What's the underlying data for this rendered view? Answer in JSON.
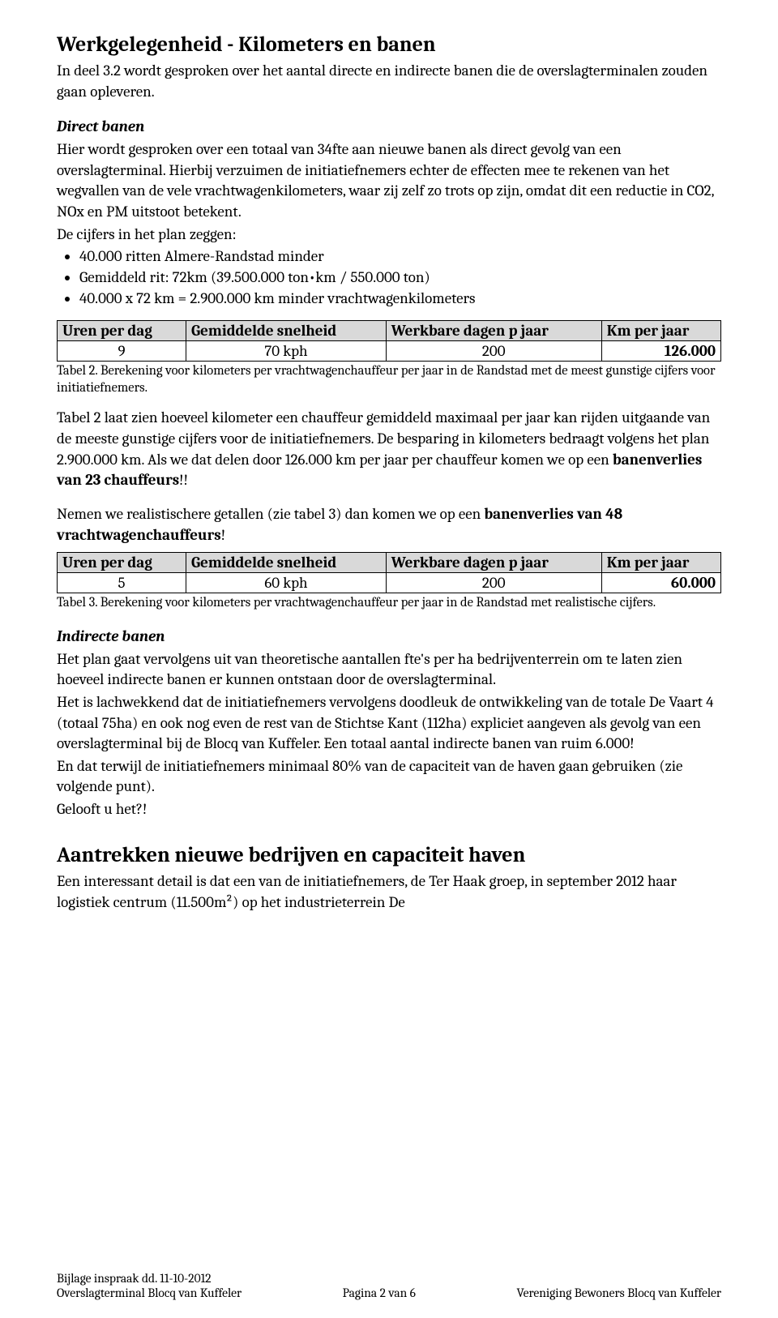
{
  "heading1": "Werkgelegenheid - Kilometers en banen",
  "intro": "In deel 3.2 wordt gesproken over het aantal directe en indirecte banen die de overslagterminalen zouden gaan opleveren.",
  "directBanen": {
    "title": "Direct banen",
    "p1": "Hier wordt gesproken over een totaal van 34fte aan nieuwe banen als direct gevolg van een overslagterminal. Hierbij verzuimen de initiatiefnemers echter de effecten mee te rekenen van het wegvallen van de vele vrachtwagenkilometers, waar zij zelf zo trots op zijn, omdat dit een reductie in CO2, NOx en PM uitstoot betekent.",
    "p2": "De cijfers in het plan zeggen:",
    "bullets": [
      "40.000 ritten Almere-Randstad minder",
      "Gemiddeld rit: 72km (39.500.000 ton•km / 550.000 ton)",
      "40.000 x 72 km = 2.900.000 km minder vrachtwagenkilometers"
    ]
  },
  "table2": {
    "headers": [
      "Uren per dag",
      "Gemiddelde snelheid",
      "Werkbare dagen p jaar",
      "Km per jaar"
    ],
    "row": [
      "9",
      "70 kph",
      "200",
      "126.000"
    ],
    "caption": "Tabel 2. Berekening voor kilometers per vrachtwagenchauffeur per jaar in de Randstad met de meest gunstige cijfers voor initiatiefnemers."
  },
  "mid": {
    "p1a": "Tabel 2 laat zien hoeveel kilometer een chauffeur gemiddeld maximaal per jaar kan rijden uitgaande van de meeste gunstige cijfers voor de initiatiefnemers. De besparing in kilometers bedraagt volgens het plan 2.900.000 km. Als we dat delen door 126.000 km per jaar per chauffeur komen we op een ",
    "p1b": "banenverlies van 23 chauffeurs",
    "p1c": "!!",
    "p2a": "Nemen we realistischere getallen (zie tabel 3) dan komen we op een ",
    "p2b": "banenverlies van 48 vrachtwagenchauffeurs",
    "p2c": "!"
  },
  "table3": {
    "headers": [
      "Uren per dag",
      "Gemiddelde snelheid",
      "Werkbare dagen p jaar",
      "Km per jaar"
    ],
    "row": [
      "5",
      "60 kph",
      "200",
      "60.000"
    ],
    "caption": "Tabel 3. Berekening voor kilometers per vrachtwagenchauffeur per jaar in de Randstad met realistische cijfers."
  },
  "indirecteBanen": {
    "title": "Indirecte banen",
    "p1": "Het plan gaat vervolgens uit van theoretische aantallen fte's per ha bedrijventerrein om te laten zien hoeveel indirecte banen er kunnen ontstaan door de overslagterminal.",
    "p2": "Het is lachwekkend dat de initiatiefnemers vervolgens doodleuk de ontwikkeling van de totale De Vaart 4 (totaal 75ha) en ook nog even de rest van de Stichtse Kant (112ha) expliciet aangeven als gevolg van een overslagterminal bij de Blocq van Kuffeler. Een totaal aantal indirecte banen van ruim 6.000!",
    "p3": "En dat terwijl de initiatiefnemers minimaal 80% van de capaciteit van de haven gaan gebruiken (zie volgende punt).",
    "p4": "Gelooft u het?!"
  },
  "heading2": "Aantrekken nieuwe bedrijven en capaciteit haven",
  "h2p1": "Een interessant detail is dat een van de initiatiefnemers, de Ter Haak groep, in september 2012 haar logistiek centrum (11.500m²) op het industrieterrein De",
  "footer": {
    "left1": "Bijlage inspraak dd. 11-10-2012",
    "left2": "Overslagterminal Blocq van Kuffeler",
    "center": "Pagina 2 van 6",
    "right": "Vereniging Bewoners Blocq van Kuffeler"
  }
}
